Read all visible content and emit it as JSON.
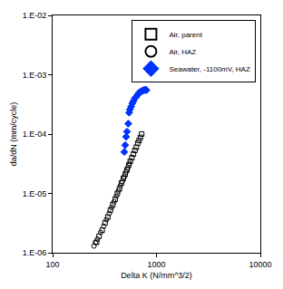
{
  "chart_data": {
    "type": "scatter",
    "log": true,
    "grid": false,
    "legend": "top-right",
    "x_label": "Delta K (N/mm^3/2)",
    "y_label": "da/dN (mm/cycle)",
    "xlim": [
      100,
      10000
    ],
    "xticks": [
      100,
      1000,
      10000
    ],
    "ylim": [
      1e-06,
      0.01
    ],
    "yticks": [
      {
        "value": 1e-06,
        "label": "1.E-06"
      },
      {
        "value": 1e-05,
        "label": "1.E-05"
      },
      {
        "value": 0.0001,
        "label": "1.E-04"
      },
      {
        "value": 0.001,
        "label": "1.E-03"
      },
      {
        "value": 0.01,
        "label": "1.E-02"
      }
    ],
    "series": [
      {
        "name": "Air, parent",
        "color": "#000000",
        "marker": "square-open",
        "x": [
          265,
          280,
          300,
          320,
          340,
          360,
          380,
          400,
          420,
          440,
          460,
          480,
          500,
          520,
          540,
          560,
          580,
          600,
          620,
          640,
          660,
          680,
          700,
          720
        ],
        "values": [
          1.5e-06,
          1.9e-06,
          2.4e-06,
          3.2e-06,
          4e-06,
          5.2e-06,
          6.5e-06,
          8e-06,
          1e-05,
          1.2e-05,
          1.5e-05,
          1.8e-05,
          2.1e-05,
          2.5e-05,
          3e-05,
          3.5e-05,
          4e-05,
          4.6e-05,
          5.3e-05,
          6e-05,
          7e-05,
          7.8e-05,
          8.8e-05,
          0.0001
        ]
      },
      {
        "name": "Air, HAZ",
        "color": "#000000",
        "marker": "circle-open",
        "x": [
          250,
          258,
          270,
          290,
          310,
          330,
          350,
          370,
          390,
          410,
          430,
          450,
          470,
          490,
          510,
          530,
          550
        ],
        "values": [
          1.3e-06,
          1.5e-06,
          1.7e-06,
          2.2e-06,
          2.8e-06,
          3.6e-06,
          4.6e-06,
          5.8e-06,
          7.2e-06,
          9e-06,
          1.1e-05,
          1.35e-05,
          1.6e-05,
          1.9e-05,
          2.3e-05,
          2.7e-05,
          3.2e-05
        ]
      },
      {
        "name": "Seawater, -1100mV, HAZ",
        "color": "#0033ff",
        "marker": "diamond",
        "x": [
          490,
          500,
          510,
          520,
          535,
          545,
          555,
          570,
          585,
          600,
          620,
          640,
          660,
          680,
          700,
          720,
          740,
          760,
          780,
          800
        ],
        "values": [
          5e-05,
          6.5e-05,
          9e-05,
          0.00011,
          0.00015,
          0.00023,
          0.00026,
          0.00029,
          0.00033,
          0.00036,
          0.0004,
          0.00043,
          0.00046,
          0.0005,
          0.00051,
          0.00053,
          0.00054,
          0.00055,
          0.00056,
          0.00055
        ]
      }
    ]
  }
}
